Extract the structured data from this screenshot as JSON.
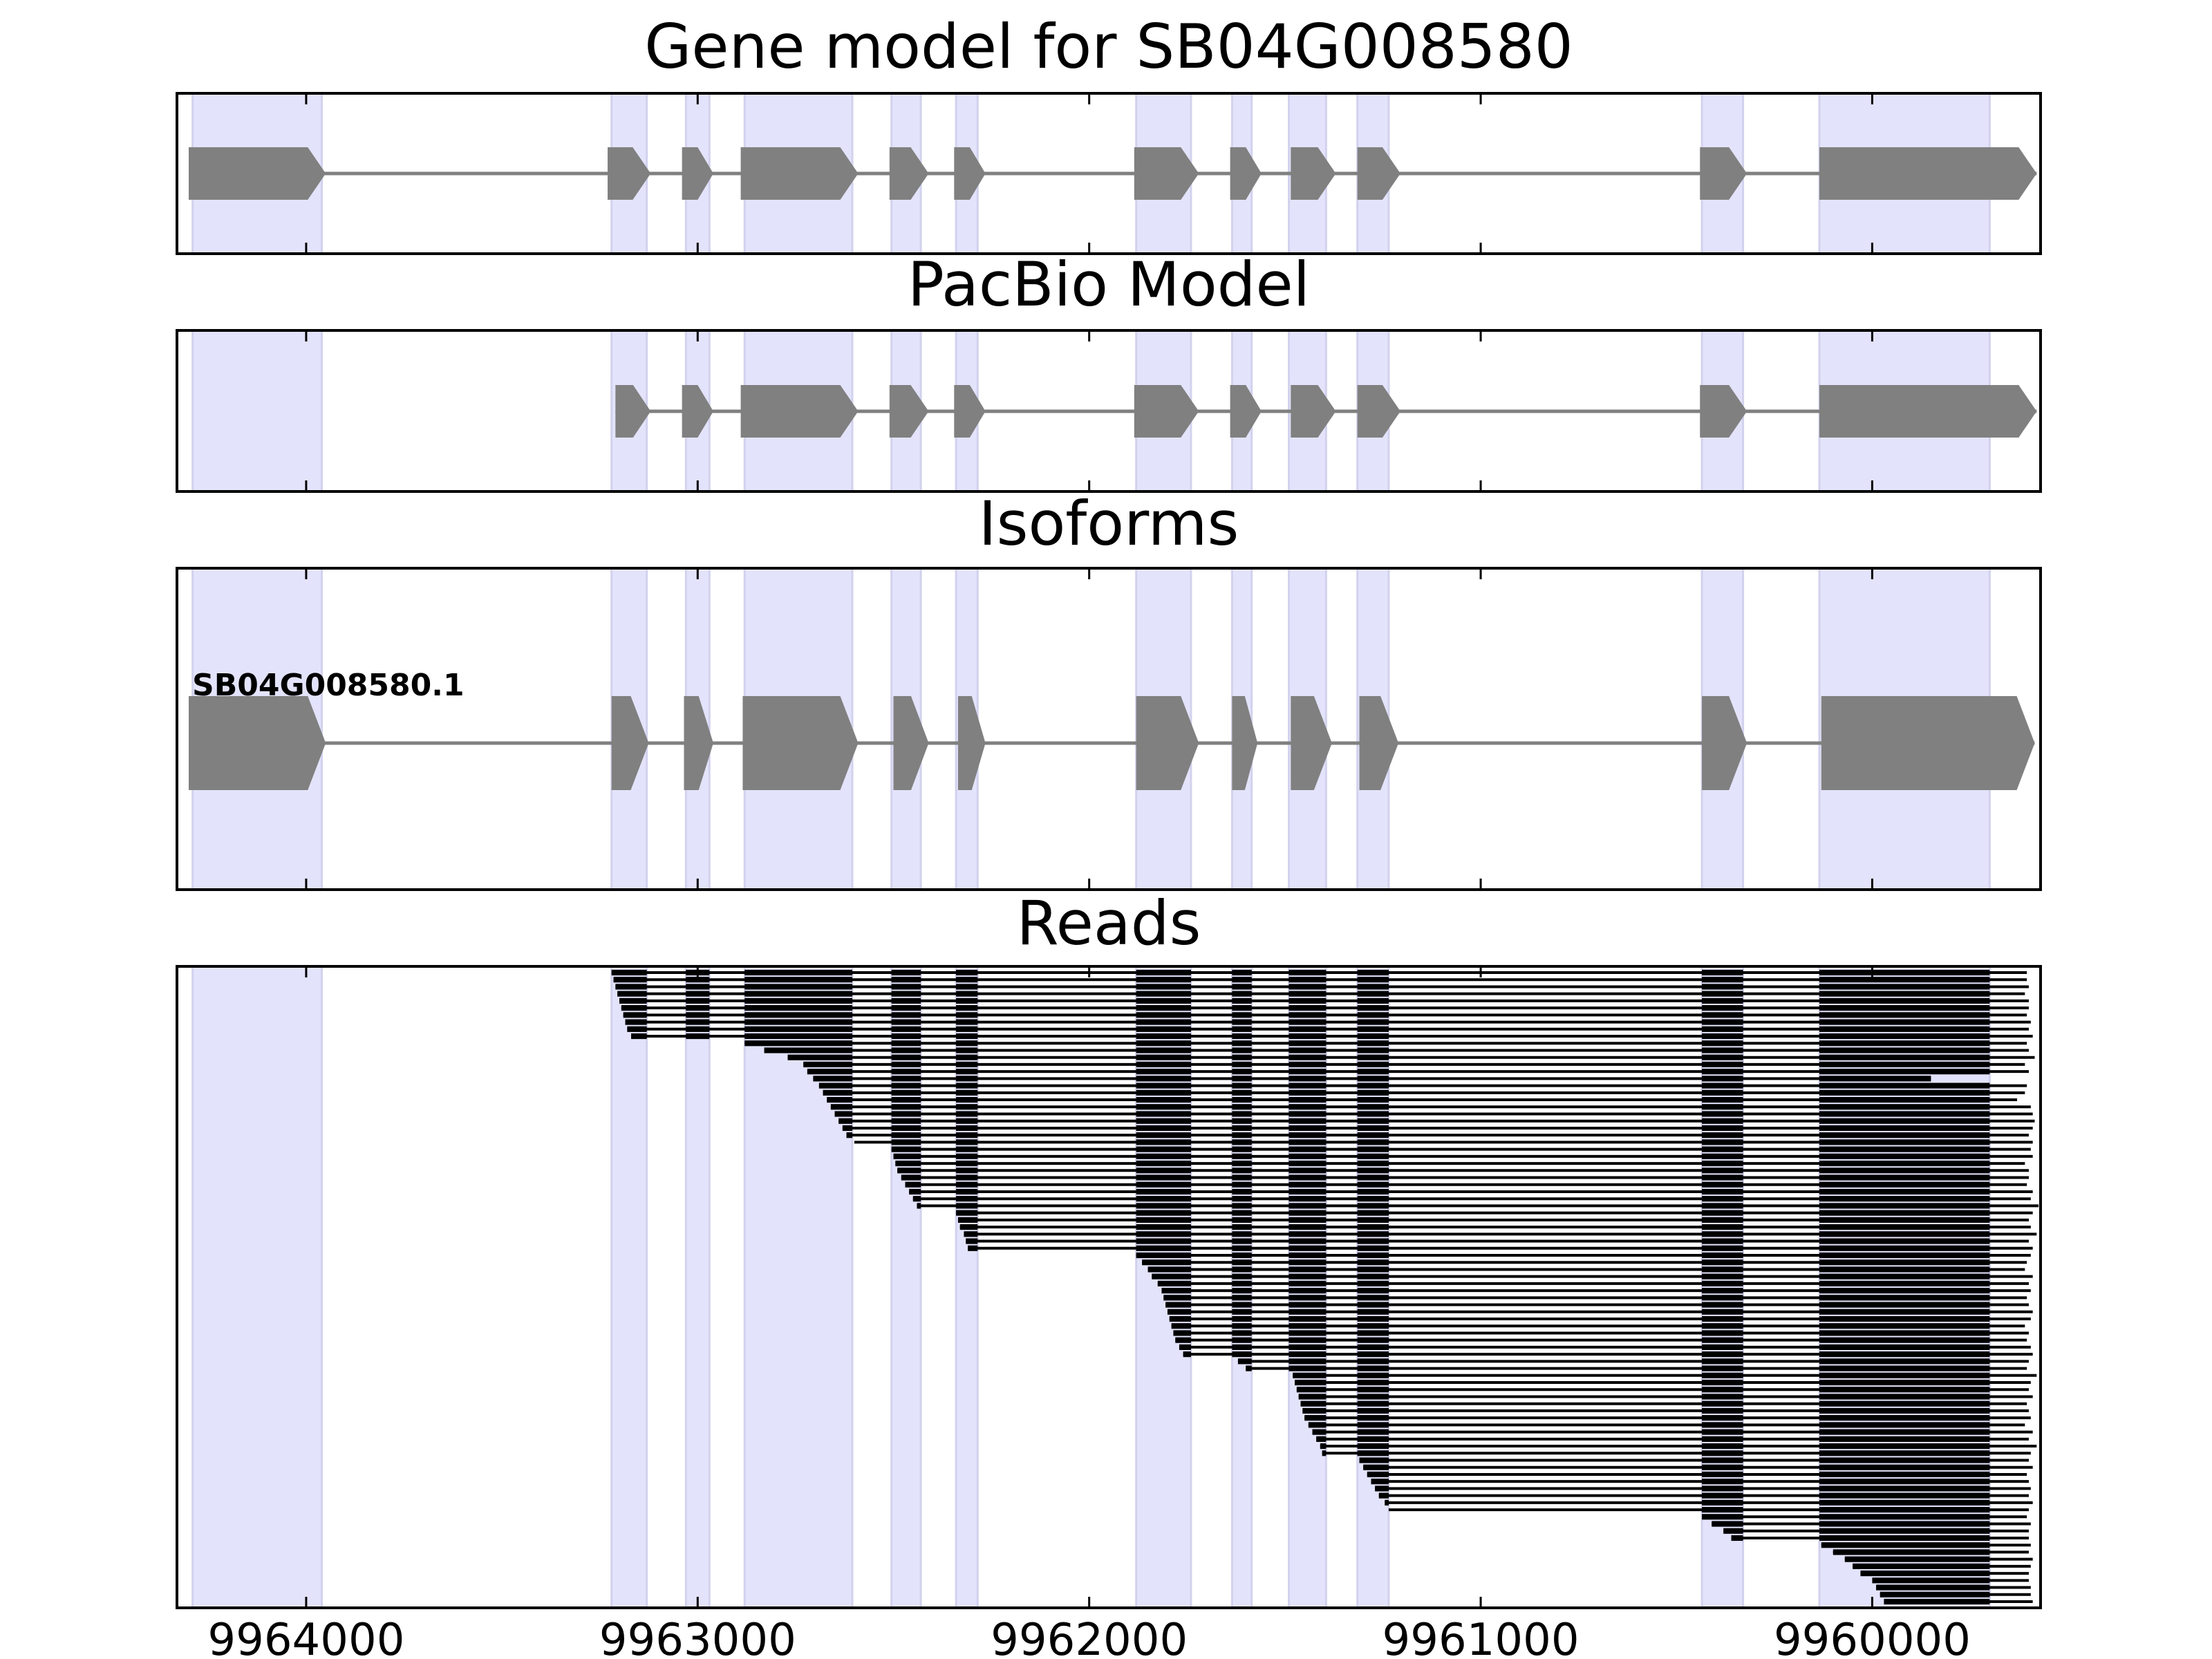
{
  "chart_data": {
    "type": "gene-track",
    "x_axis": {
      "reversed": true,
      "xlim": [
        9964330,
        9959570
      ],
      "ticks": [
        9964000,
        9963000,
        9962000,
        9961000,
        9960000
      ],
      "tick_labels": [
        "9964000",
        "9963000",
        "9962000",
        "9961000",
        "9960000"
      ]
    },
    "highlight_color": "#e3e3fb",
    "feature_color": "#808080",
    "read_color": "#000000",
    "exon_regions": [
      [
        9964290,
        9963960
      ],
      [
        9963220,
        9963130
      ],
      [
        9963030,
        9962970
      ],
      [
        9962880,
        9962605
      ],
      [
        9962505,
        9962430
      ],
      [
        9962340,
        9962285
      ],
      [
        9961880,
        9961740
      ],
      [
        9961635,
        9961585
      ],
      [
        9961490,
        9961395
      ],
      [
        9961315,
        9961235
      ],
      [
        9960435,
        9960330
      ],
      [
        9960135,
        9959700
      ]
    ],
    "panels": [
      {
        "title": "Gene model for SB04G008580",
        "kind": "model",
        "exons": [
          [
            9964300,
            9963950
          ],
          [
            9963230,
            9963120
          ],
          [
            9963040,
            9962960
          ],
          [
            9962890,
            9962590
          ],
          [
            9962510,
            9962410
          ],
          [
            9962345,
            9962265
          ],
          [
            9961885,
            9961720
          ],
          [
            9961640,
            9961560
          ],
          [
            9961485,
            9961370
          ],
          [
            9961315,
            9961205
          ],
          [
            9960440,
            9960320
          ],
          [
            9960135,
            9959580
          ]
        ]
      },
      {
        "title": "PacBio Model",
        "kind": "model",
        "exons": [
          [
            9963210,
            9963120
          ],
          [
            9963040,
            9962960
          ],
          [
            9962890,
            9962590
          ],
          [
            9962510,
            9962410
          ],
          [
            9962345,
            9962265
          ],
          [
            9961885,
            9961720
          ],
          [
            9961640,
            9961560
          ],
          [
            9961485,
            9961370
          ],
          [
            9961315,
            9961205
          ],
          [
            9960440,
            9960320
          ],
          [
            9960135,
            9959580
          ]
        ]
      },
      {
        "title": "Isoforms",
        "kind": "isoform",
        "isoform_label": "SB04G008580.1",
        "exons": [
          [
            9964300,
            9963950
          ],
          [
            9963220,
            9963125
          ],
          [
            9963035,
            9962960
          ],
          [
            9962885,
            9962590
          ],
          [
            9962500,
            9962410
          ],
          [
            9962335,
            9962265
          ],
          [
            9961880,
            9961720
          ],
          [
            9961635,
            9961570
          ],
          [
            9961485,
            9961380
          ],
          [
            9961310,
            9961210
          ],
          [
            9960435,
            9960320
          ],
          [
            9960130,
            9959585
          ]
        ]
      },
      {
        "title": "Reads",
        "kind": "reads",
        "read_count": 90,
        "read_starts": [
          9963220,
          9963215,
          9963210,
          9963205,
          9963200,
          9963195,
          9963190,
          9963185,
          9963180,
          9963170,
          9962880,
          9962830,
          9962770,
          9962730,
          9962720,
          9962705,
          9962690,
          9962680,
          9962670,
          9962660,
          9962650,
          9962640,
          9962630,
          9962620,
          9962600,
          9962505,
          9962500,
          9962495,
          9962490,
          9962480,
          9962470,
          9962460,
          9962450,
          9962440,
          9962340,
          9962335,
          9962330,
          9962320,
          9962315,
          9962310,
          9961880,
          9961865,
          9961850,
          9961840,
          9961825,
          9961815,
          9961810,
          9961805,
          9961800,
          9961795,
          9961790,
          9961785,
          9961780,
          9961770,
          9961760,
          9961620,
          9961600,
          9961480,
          9961475,
          9961470,
          9961465,
          9961460,
          9961455,
          9961450,
          9961440,
          9961430,
          9961420,
          9961410,
          9961405,
          9961310,
          9961300,
          9961290,
          9961280,
          9961270,
          9961260,
          9961245,
          9961235,
          9960435,
          9960410,
          9960380,
          9960360,
          9960130,
          9960100,
          9960070,
          9960050,
          9960030,
          9960000,
          9959990,
          9959980,
          9959970
        ],
        "read_ends": [
          9959605,
          9959605,
          9959600,
          9959610,
          9959600,
          9959600,
          9959605,
          9959595,
          9959600,
          9959590,
          9959605,
          9959600,
          9959585,
          9959610,
          9959600,
          9959850,
          9959605,
          9959610,
          9959630,
          9959595,
          9959590,
          9959585,
          9959590,
          9959600,
          9959590,
          9959595,
          9959590,
          9959610,
          9959600,
          9959600,
          9959605,
          9959590,
          9959595,
          9959575,
          9959590,
          9959600,
          9959595,
          9959580,
          9959600,
          9959590,
          9959595,
          9959605,
          9959610,
          9959590,
          9959600,
          9959595,
          9959605,
          9959600,
          9959590,
          9959595,
          9959610,
          9959600,
          9959605,
          9959595,
          9959590,
          9959600,
          9959605,
          9959580,
          9959595,
          9959600,
          9959590,
          9959605,
          9959600,
          9959595,
          9959610,
          9959590,
          9959600,
          9959580,
          9959595,
          9959600,
          9959590,
          9959605,
          9959600,
          9959595,
          9959600,
          9959590,
          9959600,
          9959605,
          9959595,
          9959600,
          9959600,
          9959595,
          9959600,
          9959590,
          9959595,
          9959600,
          9959600,
          9959595,
          9959595,
          9959590
        ]
      }
    ]
  }
}
